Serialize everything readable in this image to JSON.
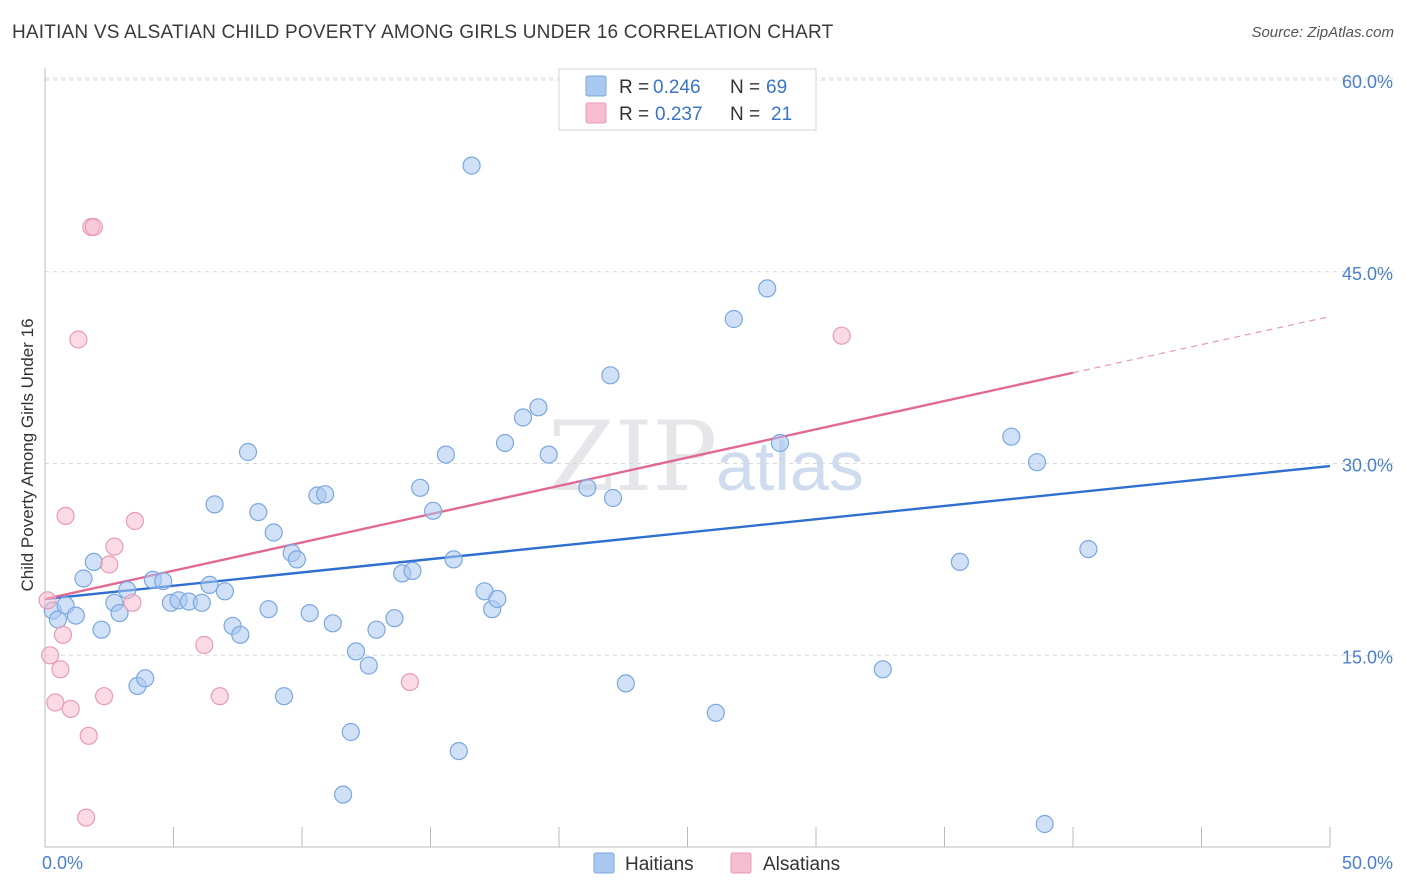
{
  "title": "HAITIAN VS ALSATIAN CHILD POVERTY AMONG GIRLS UNDER 16 CORRELATION CHART",
  "source": "Source: ZipAtlas.com",
  "watermark": {
    "part1": "ZIP",
    "part2": "atlas"
  },
  "legend": {
    "rows": [
      {
        "r_label": "R = ",
        "r_value": "0.246",
        "n_label": "N = ",
        "n_value": "69"
      },
      {
        "r_label": "R = ",
        "r_value": "0.237",
        "n_label": "N = ",
        "n_value": "21"
      }
    ]
  },
  "bottom_legend": [
    "Haitians",
    "Alsatians"
  ],
  "colors": {
    "haitians_fill": "#a9c8f0",
    "haitians_stroke": "#7aa7e0",
    "haitians_line": "#2f6fcf",
    "alsatians_fill": "#f6bcd0",
    "alsatians_stroke": "#e99ab5",
    "alsatians_line": "#e06a94",
    "axis_text": "#4a7fd0",
    "grid": "#d8d8d8"
  },
  "chart_data": {
    "type": "scatter",
    "title": "HAITIAN VS ALSATIAN CHILD POVERTY AMONG GIRLS UNDER 16 CORRELATION CHART",
    "xlabel": "",
    "ylabel": "Child Poverty Among Girls Under 16",
    "xlim": [
      0,
      50
    ],
    "ylim": [
      0,
      60
    ],
    "x_tick_labels": [
      "0.0%",
      "50.0%"
    ],
    "y_ticks": [
      15,
      30,
      45,
      60
    ],
    "y_tick_labels": [
      "15.0%",
      "30.0%",
      "45.0%",
      "60.0%"
    ],
    "grid": true,
    "legend_position": "top-center",
    "series": [
      {
        "name": "Haitians",
        "r": 0.246,
        "n": 69,
        "trend": {
          "x": [
            0,
            50
          ],
          "y": [
            19.4,
            29.8
          ],
          "dashed_from": null
        },
        "points": [
          [
            0.3,
            18.5
          ],
          [
            0.5,
            17.8
          ],
          [
            0.8,
            18.9
          ],
          [
            1.2,
            18.1
          ],
          [
            1.5,
            21.0
          ],
          [
            1.9,
            22.3
          ],
          [
            2.2,
            17.0
          ],
          [
            2.7,
            19.1
          ],
          [
            2.9,
            18.3
          ],
          [
            3.2,
            20.1
          ],
          [
            3.6,
            12.6
          ],
          [
            3.9,
            13.2
          ],
          [
            4.2,
            20.9
          ],
          [
            4.6,
            20.8
          ],
          [
            4.9,
            19.1
          ],
          [
            5.2,
            19.3
          ],
          [
            5.6,
            19.2
          ],
          [
            6.1,
            19.1
          ],
          [
            6.4,
            20.5
          ],
          [
            6.6,
            26.8
          ],
          [
            7.0,
            20.0
          ],
          [
            7.3,
            17.3
          ],
          [
            7.6,
            16.6
          ],
          [
            7.9,
            30.9
          ],
          [
            8.3,
            26.2
          ],
          [
            8.7,
            18.6
          ],
          [
            8.9,
            24.6
          ],
          [
            9.3,
            11.8
          ],
          [
            9.6,
            23.0
          ],
          [
            9.8,
            22.5
          ],
          [
            10.3,
            18.3
          ],
          [
            10.6,
            27.5
          ],
          [
            10.9,
            27.6
          ],
          [
            11.2,
            17.5
          ],
          [
            11.6,
            4.1
          ],
          [
            11.9,
            9.0
          ],
          [
            12.1,
            15.3
          ],
          [
            12.6,
            14.2
          ],
          [
            12.9,
            17.0
          ],
          [
            13.6,
            17.9
          ],
          [
            13.9,
            21.4
          ],
          [
            14.3,
            21.6
          ],
          [
            14.6,
            28.1
          ],
          [
            15.1,
            26.3
          ],
          [
            15.6,
            30.7
          ],
          [
            16.1,
            7.5
          ],
          [
            15.9,
            22.5
          ],
          [
            16.6,
            53.3
          ],
          [
            17.1,
            20.0
          ],
          [
            17.4,
            18.6
          ],
          [
            17.6,
            19.4
          ],
          [
            17.9,
            31.6
          ],
          [
            18.6,
            33.6
          ],
          [
            19.2,
            34.4
          ],
          [
            19.6,
            30.7
          ],
          [
            21.1,
            28.1
          ],
          [
            22.0,
            36.9
          ],
          [
            22.1,
            27.3
          ],
          [
            22.6,
            12.8
          ],
          [
            26.1,
            10.5
          ],
          [
            26.8,
            41.3
          ],
          [
            28.1,
            43.7
          ],
          [
            28.6,
            31.6
          ],
          [
            32.6,
            13.9
          ],
          [
            35.6,
            22.3
          ],
          [
            37.6,
            32.1
          ],
          [
            38.6,
            30.1
          ],
          [
            38.9,
            1.8
          ],
          [
            40.6,
            23.3
          ]
        ]
      },
      {
        "name": "Alsatians",
        "r": 0.237,
        "n": 21,
        "trend": {
          "x": [
            0,
            40
          ],
          "y": [
            19.4,
            37.1
          ],
          "dashed_from": 40,
          "dashed_to": [
            50,
            41.5
          ]
        },
        "points": [
          [
            0.1,
            19.3
          ],
          [
            0.2,
            15.0
          ],
          [
            0.4,
            11.3
          ],
          [
            0.6,
            13.9
          ],
          [
            0.7,
            16.6
          ],
          [
            0.8,
            25.9
          ],
          [
            1.0,
            10.8
          ],
          [
            1.3,
            39.7
          ],
          [
            1.6,
            2.3
          ],
          [
            1.7,
            8.7
          ],
          [
            1.8,
            48.5
          ],
          [
            1.9,
            48.5
          ],
          [
            2.3,
            11.8
          ],
          [
            2.5,
            22.1
          ],
          [
            2.7,
            23.5
          ],
          [
            3.4,
            19.1
          ],
          [
            3.5,
            25.5
          ],
          [
            6.2,
            15.8
          ],
          [
            6.8,
            11.8
          ],
          [
            14.2,
            12.9
          ],
          [
            31.0,
            40.0
          ]
        ]
      }
    ]
  }
}
